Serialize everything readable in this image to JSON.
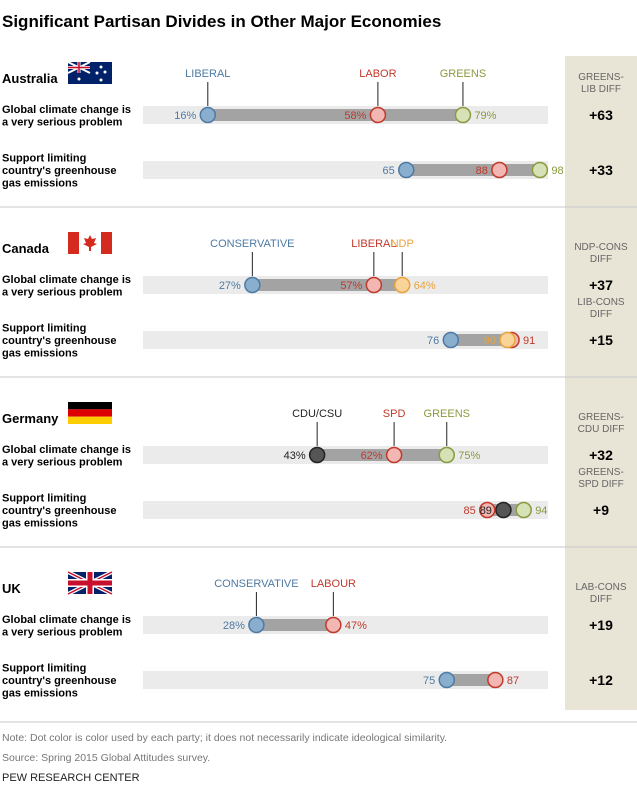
{
  "title": "Significant Partisan Divides in Other Major Economies",
  "notes": {
    "note": "Note: Dot color is color used by each party; it does not necessarily indicate ideological similarity.",
    "source": "Source: Spring 2015 Global Attitudes survey.",
    "brand": "PEW RESEARCH CENTER"
  },
  "colors": {
    "blue": "#8aaecd",
    "red": "#f2b7b3",
    "green": "#d6e2b6",
    "orange": "#f8d39a",
    "black": "#555555",
    "blue_text": "#4e7aa3",
    "red_text": "#c0392b",
    "green_text": "#8a9a3e",
    "orange_text": "#e8a33c",
    "black_text": "#222222"
  },
  "chart_data": {
    "type": "dot-plot",
    "x_range": [
      0,
      100
    ],
    "rows": [
      "Global climate change is a very serious problem",
      "Support limiting country's greenhouse gas emissions"
    ],
    "countries": [
      {
        "name": "Australia",
        "flag": "australia-flag-icon",
        "parties": [
          {
            "name": "LIBERAL",
            "color": "blue"
          },
          {
            "name": "LABOR",
            "color": "red"
          },
          {
            "name": "GREENS",
            "color": "green"
          }
        ],
        "metrics": [
          {
            "label_lines": [
              "Global climate change is",
              "a very serious problem"
            ],
            "values": [
              16,
              58,
              79
            ],
            "value_texts": [
              "16%",
              "58%",
              "79%"
            ],
            "diff_header": [
              "GREENS-",
              "LIB DIFF"
            ],
            "diff": "+63"
          },
          {
            "label_lines": [
              "Support limiting",
              "country's greenhouse",
              "gas emissions"
            ],
            "values": [
              65,
              88,
              98
            ],
            "value_texts": [
              "65",
              "88",
              "98"
            ],
            "diff_header": [],
            "diff": "+33"
          }
        ]
      },
      {
        "name": "Canada",
        "flag": "canada-flag-icon",
        "parties": [
          {
            "name": "CONSERVATIVE",
            "color": "blue"
          },
          {
            "name": "LIBERAL",
            "color": "red"
          },
          {
            "name": "NDP",
            "color": "orange"
          }
        ],
        "metrics": [
          {
            "label_lines": [
              "Global climate change is",
              "a very serious problem"
            ],
            "values": [
              27,
              57,
              64
            ],
            "value_texts": [
              "27%",
              "57%",
              "64%"
            ],
            "diff_header": [
              "NDP-CONS",
              "DIFF"
            ],
            "diff": "+37"
          },
          {
            "label_lines": [
              "Support limiting",
              "country's greenhouse",
              "gas emissions"
            ],
            "values": [
              76,
              91,
              90
            ],
            "value_texts": [
              "76",
              "91",
              "90"
            ],
            "diff_header": [
              "LIB-CONS",
              "DIFF"
            ],
            "diff": "+15"
          }
        ]
      },
      {
        "name": "Germany",
        "flag": "germany-flag-icon",
        "parties": [
          {
            "name": "CDU/CSU",
            "color": "black"
          },
          {
            "name": "SPD",
            "color": "red"
          },
          {
            "name": "GREENS",
            "color": "green"
          }
        ],
        "metrics": [
          {
            "label_lines": [
              "Global climate change is",
              "a very serious problem"
            ],
            "values": [
              43,
              62,
              75
            ],
            "value_texts": [
              "43%",
              "62%",
              "75%"
            ],
            "diff_header": [
              "GREENS-",
              "CDU DIFF"
            ],
            "diff": "+32"
          },
          {
            "label_lines": [
              "Support limiting",
              "country's greenhouse",
              "gas emissions"
            ],
            "values": [
              89,
              85,
              94
            ],
            "value_texts": [
              "89",
              "85",
              "94"
            ],
            "diff_header": [
              "GREENS-",
              "SPD DIFF"
            ],
            "diff": "+9"
          }
        ]
      },
      {
        "name": "UK",
        "flag": "uk-flag-icon",
        "parties": [
          {
            "name": "CONSERVATIVE",
            "color": "blue"
          },
          {
            "name": "LABOUR",
            "color": "red"
          }
        ],
        "metrics": [
          {
            "label_lines": [
              "Global climate change is",
              "a very serious problem"
            ],
            "values": [
              28,
              47
            ],
            "value_texts": [
              "28%",
              "47%"
            ],
            "diff_header": [
              "LAB-CONS",
              "DIFF"
            ],
            "diff": "+19"
          },
          {
            "label_lines": [
              "Support limiting",
              "country's greenhouse",
              "gas emissions"
            ],
            "values": [
              75,
              87
            ],
            "value_texts": [
              "75",
              "87"
            ],
            "diff_header": [],
            "diff": "+12"
          }
        ]
      }
    ]
  }
}
